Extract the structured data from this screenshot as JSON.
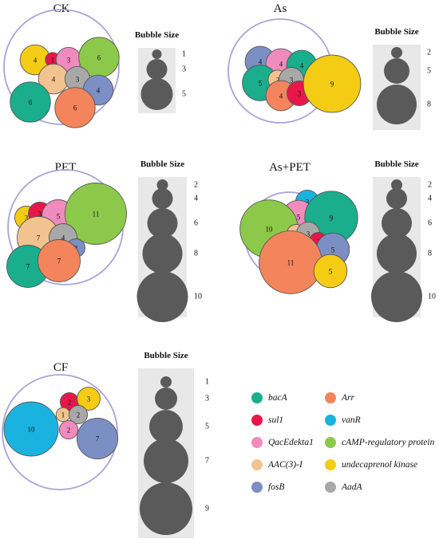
{
  "legend_title": "Bubble Size",
  "genes": [
    {
      "key": "bacA",
      "label": "bacA",
      "color": "#1aae8d"
    },
    {
      "key": "Arr",
      "label": "Arr",
      "color": "#f4845c"
    },
    {
      "key": "sul1",
      "label": "sul1",
      "color": "#e8174a"
    },
    {
      "key": "vanR",
      "label": "vanR",
      "color": "#1ab3e0"
    },
    {
      "key": "QacEdekta1",
      "label": "QacEdekta1",
      "color": "#f08bbd"
    },
    {
      "key": "cAMP",
      "label": "cAMP-regulatory protein",
      "color": "#8cc94a"
    },
    {
      "key": "AAC",
      "label": "AAC(3)-I",
      "color": "#f2c38f"
    },
    {
      "key": "undec",
      "label": "undecaprenol kinase",
      "color": "#f5cc14"
    },
    {
      "key": "fosB",
      "label": "fosB",
      "color": "#7b8fc4"
    },
    {
      "key": "AadA",
      "label": "AadA",
      "color": "#a8a8a8"
    }
  ],
  "chart_data": [
    {
      "type": "bubble",
      "title": "CK",
      "size_legend": [
        1,
        3,
        5
      ],
      "bubbles": [
        {
          "gene": "undec",
          "value": 4
        },
        {
          "gene": "sul1",
          "value": 1
        },
        {
          "gene": "QacEdekta1",
          "value": 3
        },
        {
          "gene": "cAMP",
          "value": 6
        },
        {
          "gene": "AAC",
          "value": 4
        },
        {
          "gene": "AadA",
          "value": 3
        },
        {
          "gene": "fosB",
          "value": 4
        },
        {
          "gene": "bacA",
          "value": 6
        },
        {
          "gene": "Arr",
          "value": 6
        }
      ]
    },
    {
      "type": "bubble",
      "title": "As",
      "size_legend": [
        2,
        5,
        8
      ],
      "bubbles": [
        {
          "gene": "fosB",
          "value": 4
        },
        {
          "gene": "QacEdekta1",
          "value": 4
        },
        {
          "gene": "bacA",
          "value": 4
        },
        {
          "gene": "bacA",
          "value": 5
        },
        {
          "gene": "AAC",
          "value": 2
        },
        {
          "gene": "AadA",
          "value": 3
        },
        {
          "gene": "Arr",
          "value": 4
        },
        {
          "gene": "sul1",
          "value": 3
        },
        {
          "gene": "undec",
          "value": 9
        }
      ]
    },
    {
      "type": "bubble",
      "title": "PET",
      "size_legend": [
        2,
        4,
        6,
        8,
        10
      ],
      "bubbles": [
        {
          "gene": "undec",
          "value": 3
        },
        {
          "gene": "sul1",
          "value": 3
        },
        {
          "gene": "QacEdekta1",
          "value": 5
        },
        {
          "gene": "cAMP",
          "value": 11
        },
        {
          "gene": "AAC",
          "value": 7
        },
        {
          "gene": "AadA",
          "value": 4
        },
        {
          "gene": "fosB",
          "value": 2
        },
        {
          "gene": "bacA",
          "value": 7
        },
        {
          "gene": "Arr",
          "value": 7
        }
      ]
    },
    {
      "type": "bubble",
      "title": "As+PET",
      "size_legend": [
        2,
        4,
        6,
        8,
        10
      ],
      "bubbles": [
        {
          "gene": "vanR",
          "value": 3
        },
        {
          "gene": "QacEdekta1",
          "value": 5
        },
        {
          "gene": "bacA",
          "value": 9
        },
        {
          "gene": "cAMP",
          "value": 10
        },
        {
          "gene": "AAC",
          "value": 2
        },
        {
          "gene": "AadA",
          "value": 3
        },
        {
          "gene": "sul1",
          "value": 2
        },
        {
          "gene": "fosB",
          "value": 5
        },
        {
          "gene": "Arr",
          "value": 11
        },
        {
          "gene": "undec",
          "value": 5
        }
      ]
    },
    {
      "type": "bubble",
      "title": "CF",
      "size_legend": [
        1,
        3,
        5,
        7,
        9
      ],
      "bubbles": [
        {
          "gene": "sul1",
          "value": 2
        },
        {
          "gene": "undec",
          "value": 3
        },
        {
          "gene": "AAC",
          "value": 1
        },
        {
          "gene": "AadA",
          "value": 2
        },
        {
          "gene": "vanR",
          "value": 10
        },
        {
          "gene": "QacEdekta1",
          "value": 2
        },
        {
          "gene": "fosB",
          "value": 7
        }
      ]
    }
  ]
}
